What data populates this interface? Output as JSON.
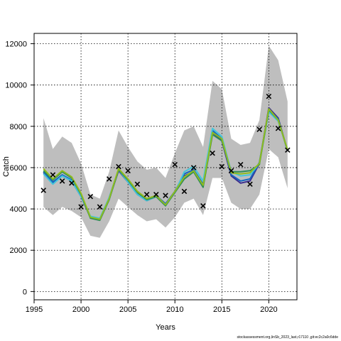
{
  "chart_data": {
    "type": "line",
    "xlabel": "Years",
    "ylabel": "Catch",
    "xlim": [
      1995,
      2023
    ],
    "ylim": [
      -400,
      12500
    ],
    "x_ticks": [
      1995,
      2000,
      2005,
      2010,
      2015,
      2020
    ],
    "y_ticks": [
      0,
      2000,
      4000,
      6000,
      8000,
      10000,
      12000
    ],
    "grid": true,
    "years": [
      1996,
      1997,
      1998,
      1999,
      2000,
      2001,
      2002,
      2003,
      2004,
      2005,
      2006,
      2007,
      2008,
      2009,
      2010,
      2011,
      2012,
      2013,
      2014,
      2015,
      2016,
      2017,
      2018,
      2019,
      2020,
      2021,
      2022
    ],
    "band": {
      "color": "#bebebe",
      "upper": [
        8400,
        6900,
        7500,
        7200,
        6200,
        4700,
        4500,
        5800,
        7800,
        7000,
        6300,
        5900,
        6000,
        5500,
        6700,
        7800,
        8000,
        7000,
        10200,
        9800,
        7400,
        7100,
        7200,
        8300,
        11900,
        11200,
        9200
      ],
      "lower": [
        4100,
        3700,
        4100,
        3900,
        3600,
        2700,
        2600,
        3400,
        4500,
        4100,
        3700,
        3400,
        3500,
        3100,
        3600,
        4300,
        4500,
        3700,
        5500,
        5500,
        4300,
        4000,
        4000,
        4700,
        6900,
        6500,
        5000
      ]
    },
    "series": [
      {
        "color": "#3d2e8f",
        "values": [
          5750,
          5250,
          5600,
          5350,
          4600,
          3600,
          3500,
          4500,
          5850,
          5300,
          4700,
          4400,
          4600,
          4200,
          4800,
          5600,
          5800,
          5150,
          7700,
          7300,
          5600,
          5250,
          5350,
          6200,
          8900,
          8400,
          6800
        ]
      },
      {
        "color": "#1565c0",
        "values": [
          5800,
          5300,
          5650,
          5400,
          4650,
          3600,
          3500,
          4550,
          5900,
          5350,
          4750,
          4450,
          4650,
          4250,
          4850,
          5700,
          5900,
          5200,
          7800,
          7400,
          5650,
          5350,
          5450,
          6250,
          8800,
          8350,
          6800
        ]
      },
      {
        "color": "#43c6db",
        "values": [
          5700,
          5200,
          5600,
          5350,
          4600,
          3650,
          3550,
          4550,
          5900,
          5300,
          4700,
          4400,
          4600,
          4200,
          4800,
          5800,
          6050,
          5350,
          7900,
          7500,
          5800,
          5600,
          5650,
          6200,
          8700,
          8250,
          6850
        ]
      },
      {
        "color": "#2e8b57",
        "values": [
          5850,
          5400,
          5800,
          5500,
          4700,
          3550,
          3450,
          4450,
          5900,
          5400,
          4800,
          4450,
          4600,
          4150,
          4800,
          5450,
          5800,
          5050,
          7600,
          7300,
          5800,
          5800,
          5850,
          6150,
          8800,
          8300,
          6850
        ]
      },
      {
        "color": "#8fbc1f",
        "values": [
          5950,
          5450,
          5850,
          5550,
          4750,
          3600,
          3500,
          4500,
          5950,
          5450,
          4850,
          4500,
          4650,
          4200,
          4850,
          5550,
          5850,
          5150,
          7700,
          7400,
          5750,
          5700,
          5750,
          6200,
          8850,
          8300,
          6850
        ]
      }
    ],
    "observed": {
      "marker": "x",
      "x": [
        1996,
        1997,
        1998,
        1999,
        2000,
        2001,
        2002,
        2003,
        2004,
        2005,
        2006,
        2007,
        2008,
        2009,
        2010,
        2011,
        2012,
        2013,
        2014,
        2015,
        2016,
        2017,
        2018,
        2019,
        2020,
        2021,
        2022
      ],
      "y": [
        4900,
        5650,
        5350,
        5250,
        4100,
        4600,
        4100,
        5450,
        6050,
        5850,
        5200,
        4700,
        4700,
        4650,
        6150,
        4850,
        6000,
        4150,
        6700,
        6050,
        5850,
        6150,
        5200,
        7850,
        9450,
        7900,
        6850
      ]
    }
  },
  "footer": {
    "text": "stockassessment.org,linSb_2023_last,r17110 ,git:ec2c2a0c6dde"
  }
}
